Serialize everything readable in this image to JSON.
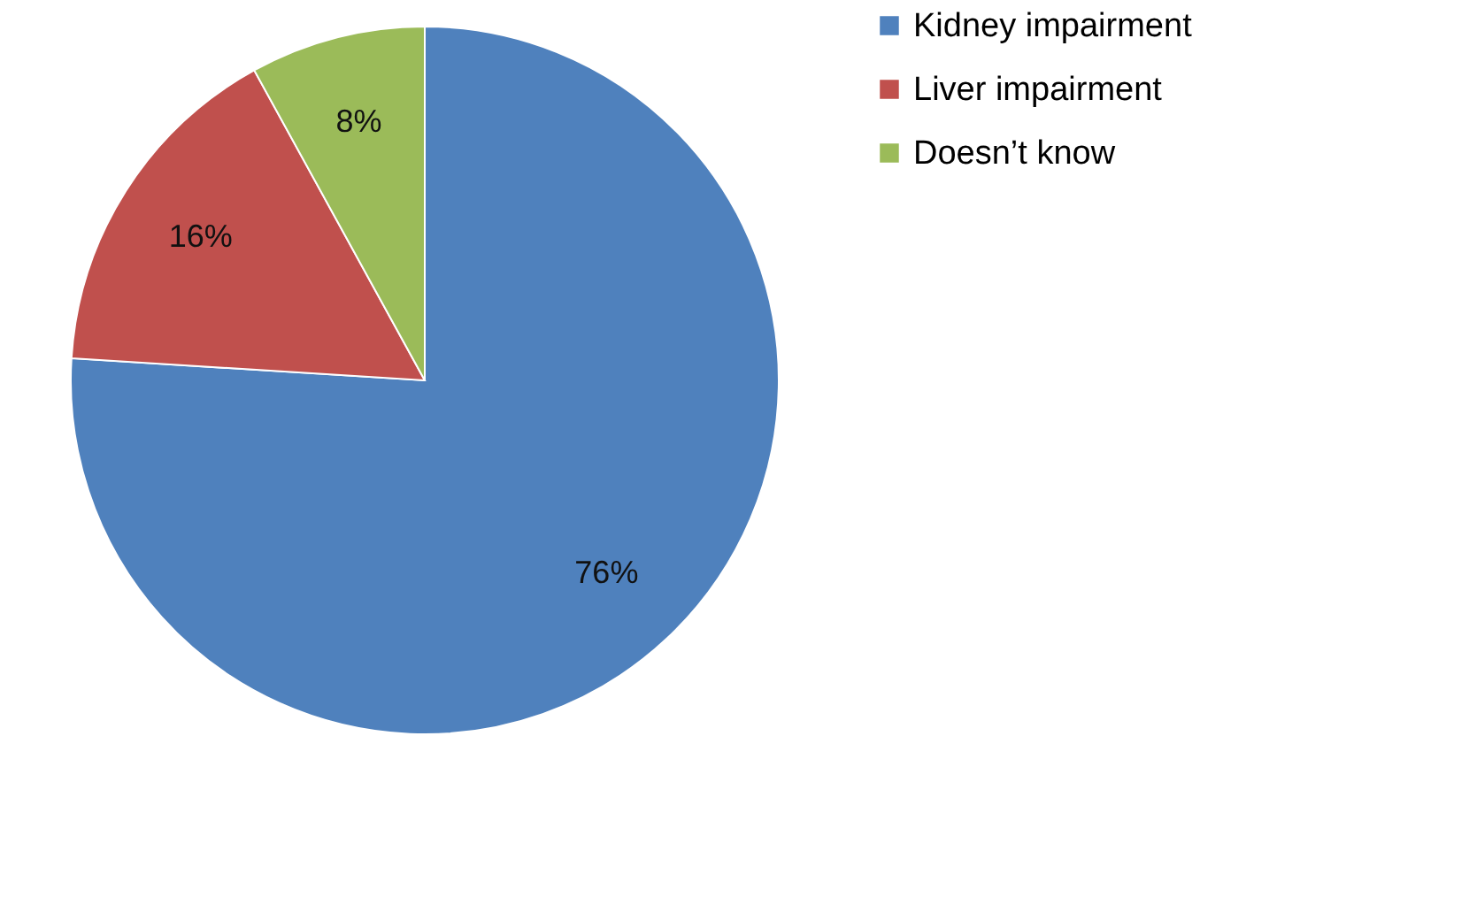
{
  "chart_data": {
    "type": "pie",
    "categories": [
      "Kidney impairment",
      "Liver impairment",
      "Doesn’t  know"
    ],
    "values": [
      76,
      16,
      8
    ],
    "colors": [
      "#4f81bd",
      "#c0504d",
      "#9bbb59"
    ],
    "value_labels": [
      "76%",
      "16%",
      "8%"
    ],
    "legend": "right"
  }
}
